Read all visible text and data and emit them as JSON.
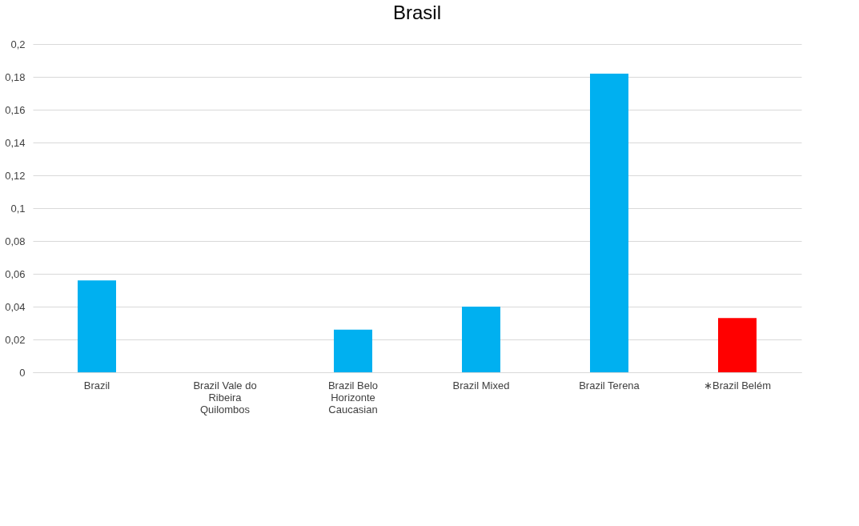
{
  "chart_data": {
    "type": "bar",
    "title": "Brasil",
    "categories": [
      "Brazil",
      "Brazil Vale do Ribeira Quilombos",
      "Brazil Belo Horizonte Caucasian",
      "Brazil Mixed",
      "Brazil Terena",
      "∗Brazil Belém"
    ],
    "values": [
      0.056,
      0,
      0.026,
      0.04,
      0.182,
      0.033
    ],
    "colors": [
      "#00b0f0",
      "#00b0f0",
      "#00b0f0",
      "#00b0f0",
      "#00b0f0",
      "#ff0000"
    ],
    "ylim": [
      0,
      0.2
    ],
    "yticks": [
      {
        "value": 0,
        "label": "0"
      },
      {
        "value": 0.02,
        "label": "0,02"
      },
      {
        "value": 0.04,
        "label": "0,04"
      },
      {
        "value": 0.06,
        "label": "0,06"
      },
      {
        "value": 0.08,
        "label": "0,08"
      },
      {
        "value": 0.1,
        "label": "0,1"
      },
      {
        "value": 0.12,
        "label": "0,12"
      },
      {
        "value": 0.14,
        "label": "0,14"
      },
      {
        "value": 0.16,
        "label": "0,16"
      },
      {
        "value": 0.18,
        "label": "0,18"
      },
      {
        "value": 0.2,
        "label": "0,2"
      }
    ],
    "grid": "y"
  }
}
